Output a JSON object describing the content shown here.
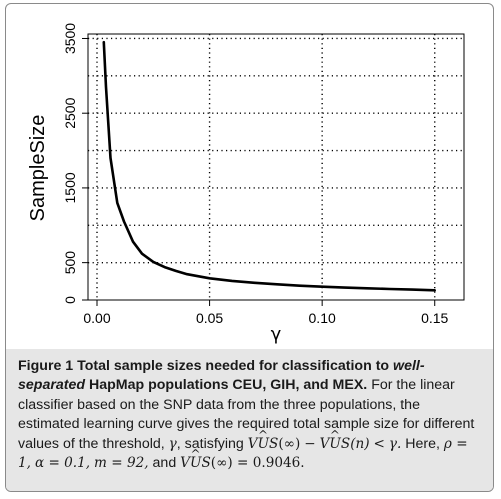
{
  "chart_data": {
    "type": "line",
    "xlabel": "γ",
    "ylabel": "SampleSize",
    "xlim": [
      -0.004,
      0.163
    ],
    "ylim": [
      0,
      3560
    ],
    "x_ticks": [
      0.0,
      0.05,
      0.1,
      0.15
    ],
    "x_tick_labels": [
      "0.00",
      "0.05",
      "0.10",
      "0.15"
    ],
    "y_ticks": [
      0,
      500,
      1500,
      2500,
      3500
    ],
    "y_tick_labels": [
      "0",
      "500",
      "1500",
      "2500",
      "3500"
    ],
    "grid": true,
    "grid_x": [
      0.0,
      0.05,
      0.1,
      0.15
    ],
    "grid_y": [
      500,
      1000,
      1500,
      2000,
      2500,
      3000,
      3500
    ],
    "series": [
      {
        "x": [
          0.003,
          0.004,
          0.006,
          0.009,
          0.012,
          0.016,
          0.02,
          0.025,
          0.03,
          0.035,
          0.04,
          0.05,
          0.06,
          0.07,
          0.08,
          0.09,
          0.1,
          0.11,
          0.12,
          0.13,
          0.14,
          0.15
        ],
        "values": [
          3450,
          2850,
          1900,
          1300,
          1050,
          780,
          620,
          510,
          440,
          390,
          345,
          290,
          255,
          230,
          210,
          192,
          178,
          166,
          156,
          147,
          139,
          130
        ]
      }
    ]
  },
  "caption": {
    "label": "Figure 1",
    "title_a": "Total sample sizes needed for classification to",
    "title_b": "well-separated",
    "title_c": "HapMap populations CEU, GIH, and MEX.",
    "body_1": "For the linear classifier based on the SNP data from the three populations, the estimated learning curve gives the required total sample size for different values of the threshold,",
    "gamma": "γ",
    "body_2": ", satisfying",
    "vus1": "VUS",
    "inf": "(∞)",
    "minus": "−",
    "vus2": "VUS",
    "n": "(n)",
    "lt": "<",
    "gamma2": "γ.",
    "here": "Here,",
    "rho": "ρ = 1,",
    "alpha": "α = 0.1,",
    "m": "m = 92,",
    "and": "and",
    "vus3": "VUS",
    "inf2": "(∞) = 0.9046."
  }
}
